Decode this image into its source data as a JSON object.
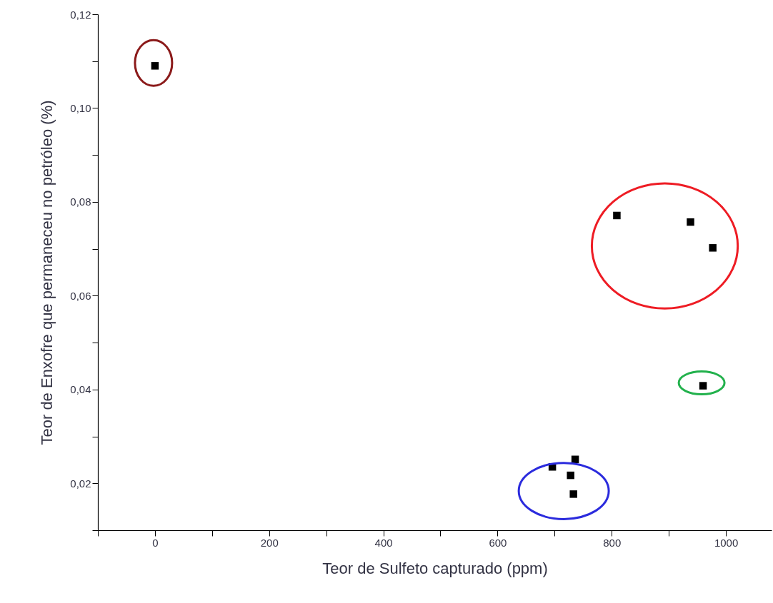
{
  "chart_data": {
    "type": "scatter",
    "xlabel": "Teor de Sulfeto capturado (ppm)",
    "ylabel": "Teor de Enxofre que permaneceu no petróleo (%)",
    "xlim": [
      -100,
      1080
    ],
    "xticks": [
      {
        "value": -100,
        "label": null
      },
      0,
      {
        "value": 100,
        "label": null
      },
      200,
      {
        "value": 300,
        "label": null
      },
      400,
      {
        "value": 500,
        "label": null
      },
      600,
      {
        "value": 700,
        "label": null
      },
      800,
      {
        "value": 900,
        "label": null
      },
      1000
    ],
    "ylim": [
      0.01,
      0.12
    ],
    "yticks": [
      {
        "value": 0.01,
        "label": null
      },
      {
        "value": 0.02,
        "label": "0,02"
      },
      {
        "value": 0.03,
        "label": null
      },
      {
        "value": 0.04,
        "label": "0,04"
      },
      {
        "value": 0.05,
        "label": null
      },
      {
        "value": 0.06,
        "label": "0,06"
      },
      {
        "value": 0.07,
        "label": null
      },
      {
        "value": 0.08,
        "label": "0,08"
      },
      {
        "value": 0.09,
        "label": null
      },
      {
        "value": 0.1,
        "label": "0,10"
      },
      {
        "value": 0.11,
        "label": null
      },
      {
        "value": 0.12,
        "label": "0,12"
      }
    ],
    "marker": "square",
    "grid": false,
    "legend": false,
    "series": [
      {
        "color": "#000000",
        "x": [
          0
        ],
        "values": [
          0.109
        ]
      },
      {
        "color": "#000000",
        "x": [
          809,
          938,
          977
        ],
        "values": [
          0.0771,
          0.0757,
          0.0702
        ]
      },
      {
        "color": "#000000",
        "x": [
          960
        ],
        "values": [
          0.0408
        ]
      },
      {
        "color": "#000000",
        "x": [
          696,
          736,
          728,
          733
        ],
        "values": [
          0.0235,
          0.0251,
          0.0217,
          0.0177
        ]
      }
    ]
  }
}
